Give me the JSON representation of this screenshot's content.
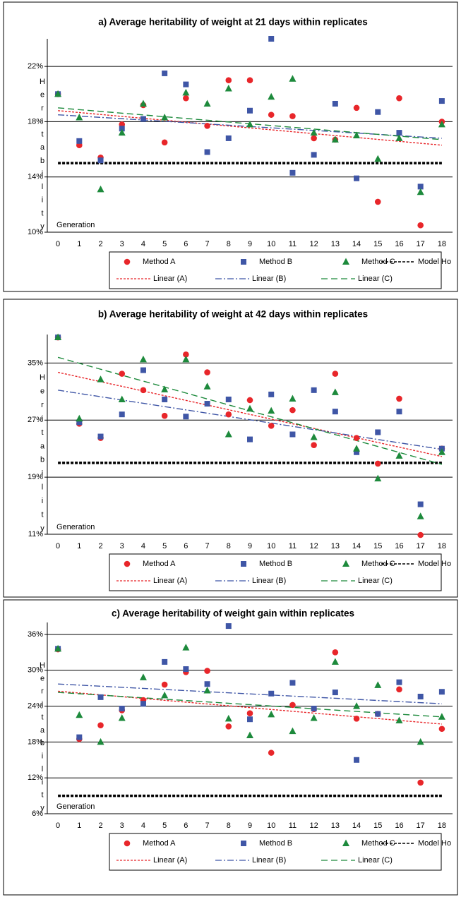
{
  "chart_data": [
    {
      "type": "scatter",
      "title": "a) Average heritability of weight at 21 days within replicates",
      "y_label": "Heritability",
      "x_label": "Generation",
      "x": [
        0,
        1,
        2,
        3,
        4,
        5,
        6,
        7,
        8,
        9,
        10,
        11,
        12,
        13,
        14,
        15,
        16,
        17,
        18
      ],
      "xlim": [
        -0.5,
        18.5
      ],
      "ylim": [
        10,
        24
      ],
      "yticks": [
        {
          "value": 10,
          "label": "10%"
        },
        {
          "value": 14,
          "label": "14%"
        },
        {
          "value": 18,
          "label": "18%"
        },
        {
          "value": 22,
          "label": "22%"
        }
      ],
      "grid": true,
      "series": [
        {
          "name": "Method A",
          "color": "#e8262a",
          "marker": "circle",
          "values": [
            20.0,
            16.3,
            15.4,
            17.8,
            19.2,
            16.5,
            19.7,
            17.7,
            21.0,
            21.0,
            18.5,
            18.4,
            16.8,
            16.7,
            19.0,
            12.2,
            19.7,
            10.5,
            18.0
          ]
        },
        {
          "name": "Method B",
          "color": "#3f56a6",
          "marker": "square",
          "values": [
            20.0,
            16.6,
            15.2,
            17.5,
            18.2,
            21.5,
            20.7,
            15.8,
            16.8,
            18.8,
            24.0,
            14.3,
            15.6,
            19.3,
            13.9,
            18.7,
            17.2,
            13.3,
            19.5
          ]
        },
        {
          "name": "Method C",
          "color": "#1d8a3c",
          "marker": "triangle",
          "values": [
            20.0,
            18.3,
            13.1,
            17.2,
            19.3,
            18.3,
            20.1,
            19.3,
            20.4,
            17.8,
            19.8,
            21.1,
            17.2,
            16.7,
            17.0,
            15.3,
            16.8,
            12.9,
            17.8
          ]
        },
        {
          "name": "Model Ho",
          "color": "#000000",
          "marker": "line",
          "dash": "dense",
          "x": [
            0,
            18
          ],
          "values": [
            15,
            15
          ]
        },
        {
          "name": "Linear (A)",
          "color": "#e8262a",
          "marker": "line",
          "dash": "dot",
          "x": [
            0,
            18
          ],
          "values": [
            18.8,
            16.3
          ]
        },
        {
          "name": "Linear (B)",
          "color": "#3f56a6",
          "marker": "line",
          "dash": "dashdot",
          "x": [
            0,
            18
          ],
          "values": [
            18.5,
            16.8
          ]
        },
        {
          "name": "Linear (C)",
          "color": "#1d8a3c",
          "marker": "line",
          "dash": "dash",
          "x": [
            0,
            18
          ],
          "values": [
            19.0,
            16.7
          ]
        }
      ]
    },
    {
      "type": "scatter",
      "title": "b) Average heritability of weight at 42 days within replicates",
      "y_label": "Heritability",
      "x_label": "Generation",
      "x": [
        0,
        1,
        2,
        3,
        4,
        5,
        6,
        7,
        8,
        9,
        10,
        11,
        12,
        13,
        14,
        15,
        16,
        17,
        18
      ],
      "xlim": [
        -0.5,
        18.5
      ],
      "ylim": [
        11,
        39
      ],
      "yticks": [
        {
          "value": 11,
          "label": "11%"
        },
        {
          "value": 19,
          "label": "19%"
        },
        {
          "value": 27,
          "label": "27%"
        },
        {
          "value": 35,
          "label": "35%"
        }
      ],
      "grid": true,
      "series": [
        {
          "name": "Method A",
          "color": "#e8262a",
          "marker": "circle",
          "values": [
            38.6,
            26.5,
            24.5,
            33.5,
            31.2,
            27.6,
            36.2,
            33.7,
            27.8,
            29.8,
            26.2,
            28.4,
            23.5,
            33.5,
            24.5,
            20.9,
            30.0,
            10.9,
            23.0
          ]
        },
        {
          "name": "Method B",
          "color": "#3f56a6",
          "marker": "square",
          "values": [
            38.6,
            26.7,
            24.7,
            27.8,
            34.0,
            29.9,
            27.5,
            29.3,
            29.9,
            24.3,
            30.6,
            25.0,
            31.2,
            28.2,
            22.5,
            25.3,
            28.2,
            15.2,
            23.0
          ]
        },
        {
          "name": "Method C",
          "color": "#1d8a3c",
          "marker": "triangle",
          "values": [
            38.6,
            27.2,
            32.7,
            29.9,
            35.5,
            31.3,
            35.5,
            31.7,
            25.0,
            28.6,
            28.3,
            30.0,
            24.6,
            30.9,
            23.0,
            18.8,
            22.0,
            13.5,
            22.5
          ]
        },
        {
          "name": "Model Ho",
          "color": "#000000",
          "marker": "line",
          "dash": "dense",
          "x": [
            0,
            18
          ],
          "values": [
            21,
            21
          ]
        },
        {
          "name": "Linear (A)",
          "color": "#e8262a",
          "marker": "line",
          "dash": "dot",
          "x": [
            0,
            18
          ],
          "values": [
            33.7,
            21.9
          ]
        },
        {
          "name": "Linear (B)",
          "color": "#3f56a6",
          "marker": "line",
          "dash": "dashdot",
          "x": [
            0,
            18
          ],
          "values": [
            31.2,
            22.9
          ]
        },
        {
          "name": "Linear (C)",
          "color": "#1d8a3c",
          "marker": "line",
          "dash": "dash",
          "x": [
            0,
            18
          ],
          "values": [
            35.8,
            20.8
          ]
        }
      ]
    },
    {
      "type": "scatter",
      "title": "c) Average heritability of weight gain within replicates",
      "y_label": "Heritability",
      "x_label": "Generation",
      "x": [
        0,
        1,
        2,
        3,
        4,
        5,
        6,
        7,
        8,
        9,
        10,
        11,
        12,
        13,
        14,
        15,
        16,
        17,
        18
      ],
      "xlim": [
        -0.5,
        18.5
      ],
      "ylim": [
        6,
        38
      ],
      "yticks": [
        {
          "value": 6,
          "label": "6%"
        },
        {
          "value": 12,
          "label": "12%"
        },
        {
          "value": 18,
          "label": "18%"
        },
        {
          "value": 24,
          "label": "24%"
        },
        {
          "value": 30,
          "label": "30%"
        },
        {
          "value": 36,
          "label": "36%"
        }
      ],
      "grid": true,
      "series": [
        {
          "name": "Method A",
          "color": "#e8262a",
          "marker": "circle",
          "values": [
            33.5,
            18.5,
            20.8,
            23.3,
            25.0,
            27.6,
            29.7,
            29.9,
            20.6,
            22.8,
            16.2,
            24.2,
            23.5,
            33.0,
            21.9,
            22.7,
            26.8,
            11.2,
            20.2
          ]
        },
        {
          "name": "Method B",
          "color": "#3f56a6",
          "marker": "square",
          "values": [
            33.6,
            18.8,
            25.5,
            23.6,
            24.4,
            31.4,
            30.2,
            27.7,
            37.4,
            21.8,
            26.1,
            27.9,
            23.6,
            26.3,
            15.0,
            22.7,
            28.0,
            25.6,
            26.4
          ]
        },
        {
          "name": "Method C",
          "color": "#1d8a3c",
          "marker": "triangle",
          "values": [
            33.6,
            22.5,
            18.0,
            22.0,
            28.8,
            25.8,
            33.8,
            26.6,
            21.9,
            19.1,
            22.6,
            19.8,
            22.0,
            31.4,
            24.0,
            27.5,
            21.6,
            18.0,
            22.2
          ]
        },
        {
          "name": "Model Ho",
          "color": "#000000",
          "marker": "line",
          "dash": "dense",
          "x": [
            0,
            18
          ],
          "values": [
            9,
            9
          ]
        },
        {
          "name": "Linear (A)",
          "color": "#e8262a",
          "marker": "line",
          "dash": "dot",
          "x": [
            0,
            18
          ],
          "values": [
            26.5,
            21.0
          ]
        },
        {
          "name": "Linear (B)",
          "color": "#3f56a6",
          "marker": "line",
          "dash": "dashdot",
          "x": [
            0,
            18
          ],
          "values": [
            27.7,
            24.4
          ]
        },
        {
          "name": "Linear (C)",
          "color": "#1d8a3c",
          "marker": "line",
          "dash": "dash",
          "x": [
            0,
            18
          ],
          "values": [
            26.3,
            22.2
          ]
        }
      ]
    }
  ]
}
